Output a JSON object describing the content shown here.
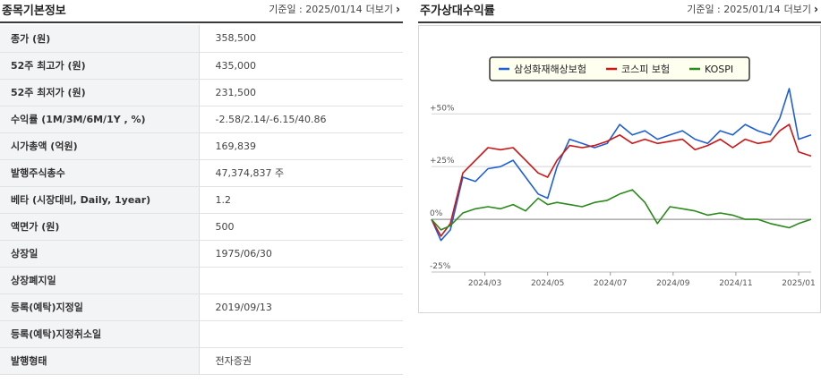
{
  "left": {
    "title": "종목기본정보",
    "base_date_label": "기준일 : 2025/01/14",
    "more_label": "더보기",
    "rows": [
      {
        "label": "종가 (원)",
        "value": "358,500"
      },
      {
        "label": "52주 최고가 (원)",
        "value": "435,000"
      },
      {
        "label": "52주 최저가 (원)",
        "value": "231,500"
      },
      {
        "label": "수익률 (1M/3M/6M/1Y , %)",
        "value": "-2.58/2.14/-6.15/40.86"
      },
      {
        "label": "시가총액 (억원)",
        "value": "169,839"
      },
      {
        "label": "발행주식총수",
        "value": "47,374,837 주"
      },
      {
        "label": "베타 (시장대비, Daily, 1year)",
        "value": "1.2"
      },
      {
        "label": "액면가 (원)",
        "value": "500"
      },
      {
        "label": "상장일",
        "value": "1975/06/30"
      },
      {
        "label": "상장폐지일",
        "value": ""
      },
      {
        "label": "등록(예탁)지정일",
        "value": "2019/09/13"
      },
      {
        "label": "등록(예탁)지정취소일",
        "value": ""
      },
      {
        "label": "발행형태",
        "value": "전자증권"
      }
    ]
  },
  "right": {
    "title": "주가상대수익률",
    "base_date_label": "기준일 : 2025/01/14",
    "more_label": "더보기"
  },
  "chart_data": {
    "type": "line",
    "title": "주가상대수익률",
    "ylabel": "",
    "xlabel": "",
    "ylim": [
      -25,
      62
    ],
    "y_ticks": [
      -25,
      0,
      25,
      50
    ],
    "y_tick_labels": [
      "-25%",
      "0%",
      "+25%",
      "+50%"
    ],
    "x_ticks": [
      1.7,
      3.7,
      5.7,
      7.7,
      9.7,
      11.7
    ],
    "x_tick_labels": [
      "2024/03",
      "2024/05",
      "2024/07",
      "2024/09",
      "2024/11",
      "2025/01"
    ],
    "xlim": [
      0,
      12.1
    ],
    "legend_position": "top-center",
    "x": [
      0,
      0.3,
      0.6,
      1.0,
      1.4,
      1.8,
      2.2,
      2.6,
      3.0,
      3.4,
      3.7,
      4.0,
      4.4,
      4.8,
      5.2,
      5.6,
      6.0,
      6.4,
      6.8,
      7.2,
      7.6,
      8.0,
      8.4,
      8.8,
      9.2,
      9.6,
      10.0,
      10.4,
      10.8,
      11.1,
      11.4,
      11.7,
      12.1
    ],
    "series": [
      {
        "name": "삼성화재해상보험",
        "color": "#1f5fd6",
        "values": [
          0,
          -10,
          -5,
          20,
          18,
          24,
          25,
          28,
          20,
          12,
          10,
          25,
          38,
          36,
          34,
          36,
          45,
          40,
          42,
          38,
          40,
          42,
          38,
          36,
          42,
          40,
          45,
          42,
          40,
          48,
          62,
          38,
          40
        ]
      },
      {
        "name": "코스피 보험",
        "color": "#cc1515",
        "values": [
          0,
          -8,
          -2,
          22,
          28,
          34,
          33,
          34,
          28,
          22,
          20,
          28,
          35,
          34,
          35,
          37,
          40,
          36,
          38,
          36,
          37,
          38,
          33,
          35,
          38,
          34,
          38,
          36,
          37,
          42,
          45,
          32,
          30
        ]
      },
      {
        "name": "KOSPI",
        "color": "#2a8a1a",
        "values": [
          0,
          -5,
          -3,
          3,
          5,
          6,
          5,
          7,
          4,
          10,
          7,
          8,
          7,
          6,
          8,
          9,
          12,
          14,
          8,
          -2,
          6,
          5,
          4,
          2,
          3,
          2,
          0,
          0,
          -2,
          -3,
          -4,
          -2,
          0
        ]
      }
    ]
  }
}
